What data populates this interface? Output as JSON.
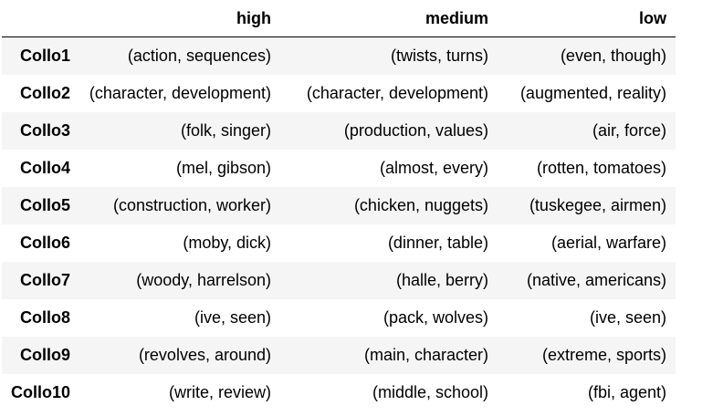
{
  "table": {
    "columns": [
      "",
      "high",
      "medium",
      "low"
    ],
    "rows": [
      {
        "index": "Collo1",
        "high": "(action, sequences)",
        "medium": "(twists, turns)",
        "low": "(even, though)"
      },
      {
        "index": "Collo2",
        "high": "(character, development)",
        "medium": "(character, development)",
        "low": "(augmented, reality)"
      },
      {
        "index": "Collo3",
        "high": "(folk, singer)",
        "medium": "(production, values)",
        "low": "(air, force)"
      },
      {
        "index": "Collo4",
        "high": "(mel, gibson)",
        "medium": "(almost, every)",
        "low": "(rotten, tomatoes)"
      },
      {
        "index": "Collo5",
        "high": "(construction, worker)",
        "medium": "(chicken, nuggets)",
        "low": "(tuskegee, airmen)"
      },
      {
        "index": "Collo6",
        "high": "(moby, dick)",
        "medium": "(dinner, table)",
        "low": "(aerial, warfare)"
      },
      {
        "index": "Collo7",
        "high": "(woody, harrelson)",
        "medium": "(halle, berry)",
        "low": "(native, americans)"
      },
      {
        "index": "Collo8",
        "high": "(ive, seen)",
        "medium": "(pack, wolves)",
        "low": "(ive, seen)"
      },
      {
        "index": "Collo9",
        "high": "(revolves, around)",
        "medium": "(main, character)",
        "low": "(extreme, sports)"
      },
      {
        "index": "Collo10",
        "high": "(write, review)",
        "medium": "(middle, school)",
        "low": "(fbi, agent)"
      }
    ]
  },
  "colors": {
    "stripe": "#f5f5f5",
    "background": "#ffffff",
    "text": "#000000",
    "header_rule": "#000000"
  }
}
